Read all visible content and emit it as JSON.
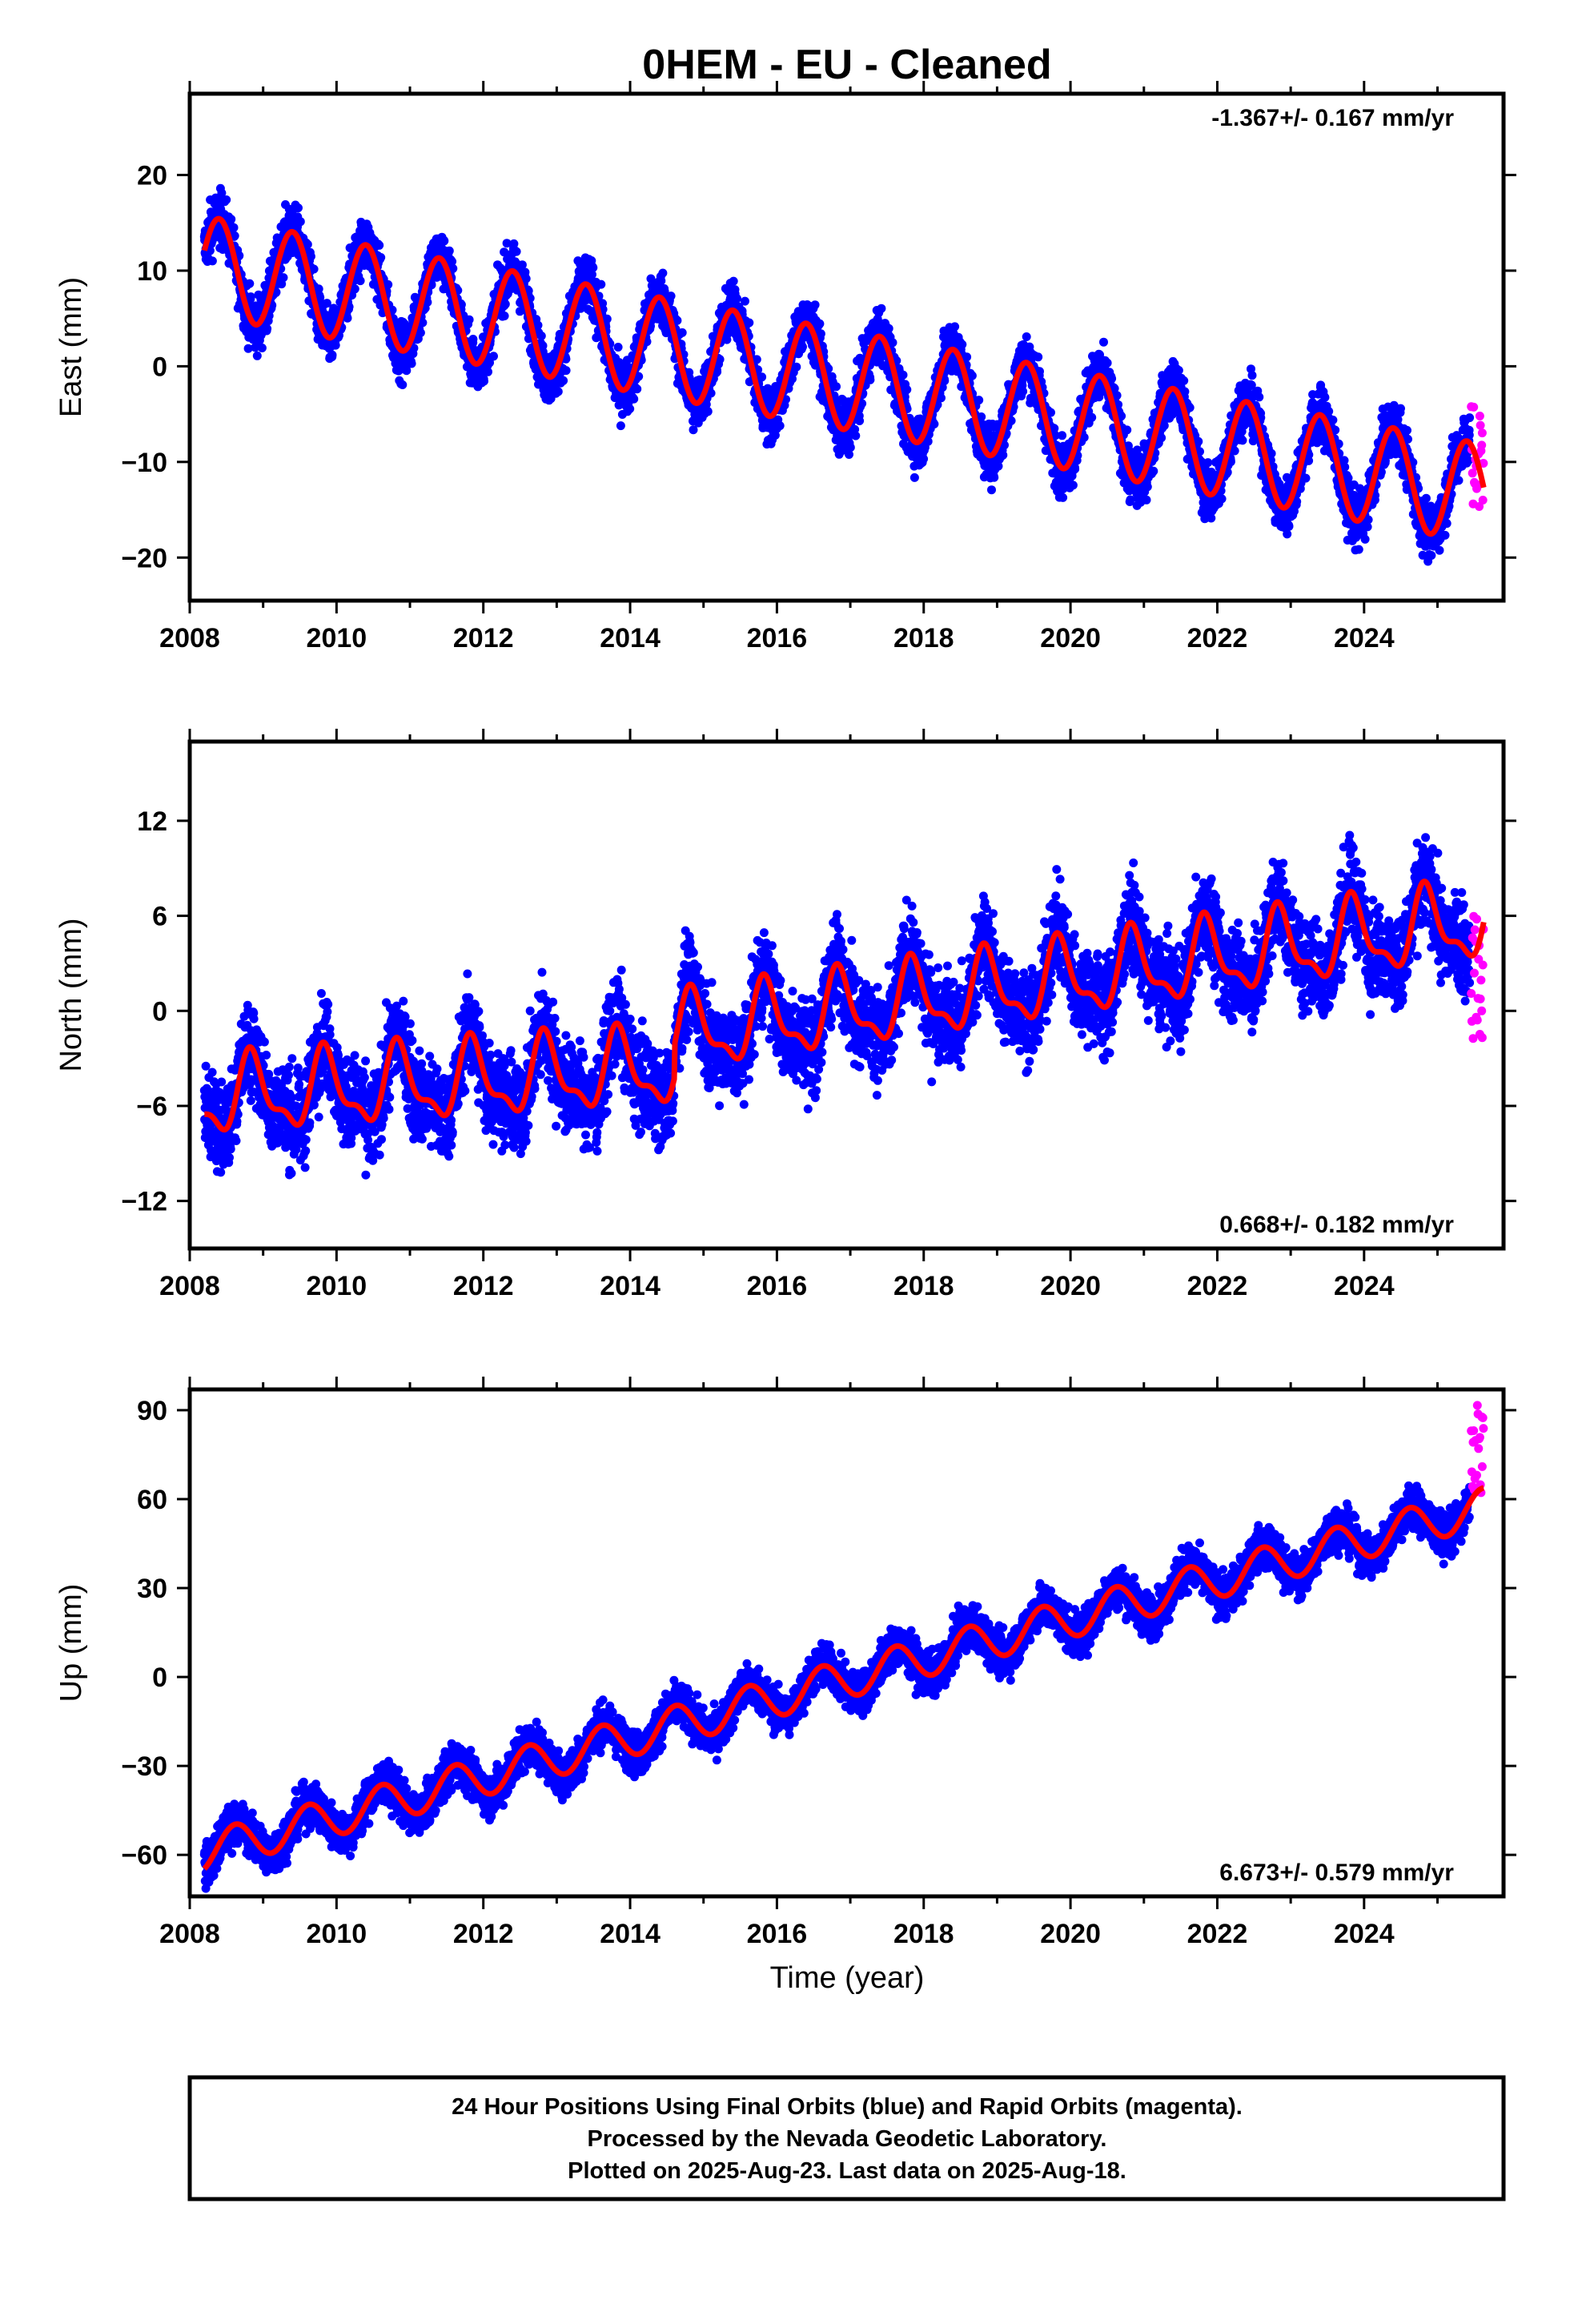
{
  "title": "0HEM  - EU - Cleaned",
  "x_axis_label": "Time (year)",
  "caption": [
    "24 Hour Positions Using Final Orbits (blue) and Rapid Orbits (magenta).",
    "Processed by the Nevada Geodetic Laboratory.",
    "Plotted on 2025-Aug-23. Last data on 2025-Aug-18."
  ],
  "colors": {
    "final_orbits": "#0000ff",
    "rapid_orbits": "#ff00ff",
    "model_fit": "#ff0000",
    "frame": "#000000"
  },
  "chart_data": [
    {
      "type": "scatter",
      "component": "East",
      "ylabel": "East (mm)",
      "rate_label": "-1.367+/- 0.167 mm/yr",
      "rate_position": "top-right",
      "xlim": [
        2008.0,
        2025.9
      ],
      "ylim": [
        -24.5,
        28.5
      ],
      "xticks": [
        "2008",
        "2010",
        "2012",
        "2014",
        "2016",
        "2018",
        "2020",
        "2022",
        "2024"
      ],
      "yticks": [
        "20",
        "10",
        "0",
        "−10",
        "−20"
      ],
      "ytick_values": [
        20,
        10,
        0,
        -10,
        -20
      ],
      "series": [
        {
          "name": "Final Orbits (blue)",
          "kind": "daily_positions",
          "x_start": 2008.2,
          "x_end": 2025.44,
          "trend_start": 10.5,
          "rate": -1.367,
          "annual_amplitude": 5.2,
          "annual_peak": 0.4,
          "scatter_sd": 2.0
        },
        {
          "name": "Rapid Orbits (magenta)",
          "kind": "daily_positions",
          "x_start": 2025.46,
          "x_end": 2025.63,
          "values_range": [
            -15,
            -3
          ]
        },
        {
          "name": "model fit",
          "kind": "fit_line",
          "x_start": 2008.2,
          "x_end": 2025.63,
          "trend_start": 10.5,
          "rate": -1.367,
          "annual_amplitude": 5.2,
          "annual_peak": 0.4
        }
      ]
    },
    {
      "type": "scatter",
      "component": "North",
      "ylabel": "North (mm)",
      "rate_label": "0.668+/- 0.182 mm/yr",
      "rate_position": "bottom-right",
      "xlim": [
        2008.0,
        2025.9
      ],
      "ylim": [
        -15,
        17
      ],
      "xticks": [
        "2008",
        "2010",
        "2012",
        "2014",
        "2016",
        "2018",
        "2020",
        "2022",
        "2024"
      ],
      "yticks": [
        "12",
        "6",
        "0",
        "−6",
        "−12"
      ],
      "ytick_values": [
        12,
        6,
        0,
        -6,
        -12
      ],
      "series": [
        {
          "name": "Final Orbits (blue)",
          "kind": "daily_positions",
          "x_start": 2008.2,
          "x_end": 2025.44,
          "before_2014_6": {
            "trend_start": -5.5,
            "rate": 0.3
          },
          "after_2014_6": {
            "trend_start": -1.5,
            "rate": 0.65
          },
          "annual_amplitude": 2.2,
          "annual_peak": 0.85,
          "scatter_sd": 2.0
        },
        {
          "name": "Rapid Orbits (magenta)",
          "kind": "daily_positions",
          "x_start": 2025.46,
          "x_end": 2025.63,
          "values_range": [
            -2,
            9
          ]
        },
        {
          "name": "model fit",
          "kind": "fit_line",
          "x_start": 2008.2,
          "x_end": 2025.63
        }
      ]
    },
    {
      "type": "scatter",
      "component": "Up",
      "ylabel": "Up (mm)",
      "rate_label": "6.673+/- 0.579 mm/yr",
      "rate_position": "bottom-right",
      "xlim": [
        2008.0,
        2025.9
      ],
      "ylim": [
        -74,
        97
      ],
      "xticks": [
        "2008",
        "2010",
        "2012",
        "2014",
        "2016",
        "2018",
        "2020",
        "2022",
        "2024"
      ],
      "yticks": [
        "90",
        "60",
        "30",
        "0",
        "−30",
        "−60"
      ],
      "ytick_values": [
        90,
        60,
        30,
        0,
        -30,
        -60
      ],
      "series": [
        {
          "name": "Final Orbits (blue)",
          "kind": "daily_positions",
          "x_start": 2008.2,
          "x_end": 2025.44,
          "trend_start": -59,
          "rate": 6.673,
          "annual_amplitude": 6.5,
          "annual_peak": 0.62,
          "scatter_sd": 5.0
        },
        {
          "name": "Rapid Orbits (magenta)",
          "kind": "daily_positions",
          "x_start": 2025.46,
          "x_end": 2025.63,
          "values_range": [
            62,
            92
          ]
        },
        {
          "name": "model fit",
          "kind": "fit_line",
          "x_start": 2008.2,
          "x_end": 2025.63,
          "trend_start": -59,
          "rate": 6.673,
          "annual_amplitude": 6.5,
          "annual_peak": 0.62
        }
      ]
    }
  ]
}
